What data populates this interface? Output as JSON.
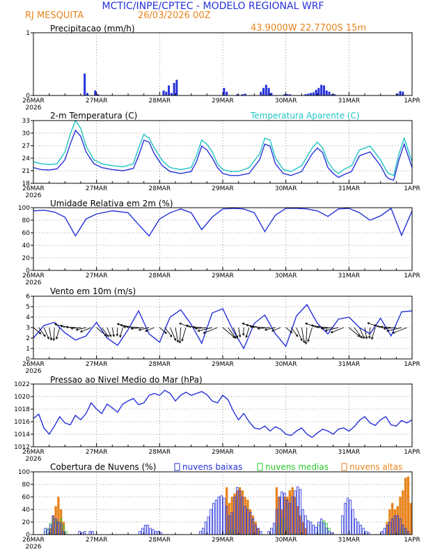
{
  "header": {
    "title": "MCTIC/INPE/CPTEC - MODELO REGIONAL WRF",
    "location": "RJ MESQUITA",
    "run": "26/03/2026 00Z",
    "coords": "43.9000W 22.7700S 15m"
  },
  "colors": {
    "title": "#2430d8",
    "orange": "#e8841c",
    "blue": "#2430d8",
    "cyan": "#1ec4c4",
    "green": "#28c828",
    "black": "#000000"
  },
  "time_axis": {
    "day_labels": [
      "26MAR",
      "27MAR",
      "28MAR",
      "29MAR",
      "30MAR",
      "31MAR",
      "1APR"
    ],
    "year_label": "2026",
    "hours_total": 144
  },
  "chart_data": [
    {
      "id": "precip",
      "type": "bar",
      "title": "Precipitacao (mm/h)",
      "ylim": [
        0,
        1
      ],
      "yticks": [
        "0",
        "1"
      ],
      "x": [
        19,
        20,
        23,
        24,
        49,
        50,
        51,
        52,
        53,
        54,
        72,
        73,
        77,
        79,
        80,
        86,
        87,
        88,
        89,
        90,
        95,
        96,
        97,
        103,
        104,
        105,
        106,
        107,
        108,
        109,
        110,
        111,
        112,
        113,
        114,
        138,
        139,
        140
      ],
      "values": [
        0.35,
        0.04,
        0.08,
        0.02,
        0.08,
        0.06,
        0.16,
        0.04,
        0.2,
        0.25,
        0.12,
        0.06,
        0.02,
        0.02,
        0.03,
        0.06,
        0.12,
        0.17,
        0.12,
        0.04,
        0.02,
        0.02,
        0.02,
        0.02,
        0.03,
        0.04,
        0.05,
        0.09,
        0.12,
        0.17,
        0.16,
        0.08,
        0.06,
        0.02,
        0.02,
        0.03,
        0.07,
        0.06
      ]
    },
    {
      "id": "temperature",
      "type": "line",
      "title": "2-m Temperatura (C)",
      "legend": "Temperatura Aparente (C)",
      "ylim": [
        17,
        33
      ],
      "yticks": [
        "18",
        "21",
        "24",
        "27",
        "30",
        "33"
      ],
      "x": [
        0,
        3,
        6,
        9,
        12,
        14,
        16,
        18,
        20,
        23,
        26,
        30,
        34,
        38,
        40,
        42,
        44,
        46,
        49,
        52,
        56,
        60,
        62,
        64,
        66,
        68,
        70,
        72,
        75,
        78,
        82,
        86,
        88,
        90,
        92,
        95,
        98,
        102,
        106,
        108,
        110,
        112,
        114,
        116,
        118,
        121,
        124,
        128,
        132,
        134,
        135,
        137,
        139,
        141,
        144
      ],
      "series": [
        {
          "name": "Temperatura",
          "values": [
            21.0,
            20.5,
            20.4,
            20.7,
            23.0,
            27.0,
            30.5,
            29.0,
            25.0,
            22.0,
            21.0,
            20.5,
            20.2,
            20.8,
            24.0,
            28.0,
            27.5,
            24.5,
            21.5,
            20.0,
            19.5,
            20.0,
            22.5,
            26.5,
            25.5,
            23.5,
            21.0,
            19.5,
            19.0,
            19.0,
            19.5,
            23.0,
            27.0,
            26.5,
            22.0,
            19.5,
            19.0,
            20.0,
            24.5,
            26.0,
            24.8,
            21.0,
            19.5,
            18.5,
            19.2,
            20.0,
            24.0,
            25.0,
            21.5,
            19.0,
            18.2,
            17.8,
            23.0,
            27.0,
            21.0
          ]
        },
        {
          "name": "Temperatura Aparente",
          "values": [
            22.5,
            22.0,
            21.8,
            22.0,
            25.0,
            29.5,
            33.0,
            31.0,
            26.5,
            23.0,
            22.0,
            21.5,
            21.2,
            22.0,
            26.0,
            29.5,
            28.5,
            26.0,
            22.8,
            21.0,
            20.5,
            21.0,
            24.0,
            28.0,
            27.0,
            25.0,
            22.0,
            20.5,
            20.0,
            20.0,
            21.0,
            24.5,
            28.5,
            28.0,
            23.5,
            20.5,
            20.0,
            21.5,
            26.0,
            27.5,
            26.0,
            22.5,
            20.5,
            19.5,
            20.5,
            21.5,
            25.5,
            26.5,
            23.0,
            20.5,
            19.5,
            19.0,
            24.5,
            28.5,
            22.5
          ]
        }
      ]
    },
    {
      "id": "humidity",
      "type": "line",
      "title": "Umidade Relativa em 2m (%)",
      "ylim": [
        0,
        100
      ],
      "yticks": [
        "0",
        "20",
        "40",
        "60",
        "80",
        "100"
      ],
      "x": [
        0,
        4,
        8,
        12,
        16,
        20,
        24,
        30,
        36,
        40,
        44,
        48,
        52,
        56,
        60,
        64,
        68,
        72,
        76,
        80,
        84,
        88,
        92,
        96,
        100,
        104,
        108,
        112,
        116,
        120,
        124,
        128,
        132,
        136,
        140,
        144
      ],
      "series": [
        {
          "name": "Umidade Relativa",
          "values": [
            95,
            96,
            93,
            85,
            55,
            82,
            90,
            95,
            92,
            73,
            55,
            82,
            92,
            98,
            92,
            65,
            85,
            98,
            99,
            98,
            92,
            62,
            88,
            99,
            99,
            98,
            95,
            86,
            98,
            99,
            92,
            80,
            87,
            99,
            56,
            95
          ]
        }
      ]
    },
    {
      "id": "wind",
      "type": "line",
      "title": "Vento em 10m (m/s)",
      "ylim": [
        0,
        6
      ],
      "yticks": [
        "0",
        "1",
        "2",
        "3",
        "4",
        "5",
        "6"
      ],
      "x": [
        0,
        4,
        8,
        12,
        16,
        20,
        24,
        28,
        32,
        36,
        40,
        44,
        48,
        52,
        56,
        60,
        64,
        68,
        72,
        76,
        80,
        84,
        88,
        92,
        96,
        100,
        104,
        108,
        112,
        116,
        120,
        124,
        128,
        132,
        136,
        140,
        144
      ],
      "series": [
        {
          "name": "Velocidade",
          "values": [
            2.0,
            3.2,
            3.5,
            2.5,
            1.8,
            2.2,
            3.5,
            2.0,
            1.3,
            2.8,
            4.6,
            2.4,
            1.6,
            4.0,
            4.7,
            3.3,
            1.5,
            4.4,
            4.8,
            2.7,
            1.0,
            3.4,
            4.2,
            2.4,
            1.2,
            4.1,
            5.2,
            3.4,
            2.4,
            3.8,
            4.0,
            3.0,
            2.4,
            3.9,
            2.2,
            4.5,
            4.6
          ]
        }
      ]
    },
    {
      "id": "pressure",
      "type": "line",
      "title": "Pressao ao Nivel Medio do Mar (hPa)",
      "ylim": [
        1012,
        1022
      ],
      "yticks": [
        "1012",
        "1014",
        "1016",
        "1018",
        "1020",
        "1022"
      ],
      "x": [
        0,
        2,
        4,
        6,
        8,
        10,
        12,
        14,
        16,
        18,
        20,
        22,
        24,
        26,
        28,
        30,
        32,
        34,
        36,
        38,
        40,
        42,
        44,
        46,
        48,
        50,
        52,
        54,
        56,
        58,
        60,
        62,
        64,
        66,
        68,
        70,
        72,
        74,
        76,
        78,
        80,
        82,
        84,
        86,
        88,
        90,
        92,
        94,
        96,
        98,
        100,
        102,
        104,
        106,
        108,
        110,
        112,
        114,
        116,
        118,
        120,
        122,
        124,
        126,
        128,
        130,
        132,
        134,
        136,
        138,
        140,
        142,
        144
      ],
      "series": [
        {
          "name": "Pressao",
          "values": [
            1016.5,
            1017.2,
            1015.0,
            1014.0,
            1015.3,
            1016.8,
            1015.8,
            1015.5,
            1017.0,
            1016.3,
            1017.3,
            1019.0,
            1018.0,
            1017.3,
            1018.8,
            1018.2,
            1017.5,
            1018.8,
            1019.3,
            1019.7,
            1018.7,
            1019.0,
            1020.2,
            1020.5,
            1020.2,
            1021.0,
            1020.5,
            1019.3,
            1020.2,
            1020.7,
            1020.2,
            1020.5,
            1020.8,
            1020.3,
            1019.3,
            1019.0,
            1020.2,
            1019.5,
            1017.7,
            1016.3,
            1017.3,
            1016.0,
            1015.0,
            1014.8,
            1015.3,
            1014.5,
            1015.2,
            1014.8,
            1014.0,
            1013.8,
            1014.5,
            1015.0,
            1014.0,
            1013.5,
            1014.2,
            1014.8,
            1014.5,
            1014.0,
            1014.8,
            1015.0,
            1014.5,
            1015.2,
            1016.2,
            1016.8,
            1015.8,
            1015.4,
            1016.3,
            1016.8,
            1015.5,
            1015.3,
            1016.2,
            1015.8,
            1016.3
          ]
        }
      ]
    },
    {
      "id": "clouds",
      "type": "bar",
      "title": "Cobertura de Nuvens (%)",
      "ylim": [
        0,
        100
      ],
      "yticks": [
        "0",
        "20",
        "40",
        "60",
        "80",
        "100"
      ],
      "x": [
        4,
        5,
        6,
        7,
        8,
        9,
        10,
        11,
        12,
        13,
        14,
        15,
        16,
        17,
        18,
        19,
        20,
        21,
        22,
        23,
        24,
        25,
        26,
        27,
        28,
        29,
        30,
        31,
        32,
        33,
        34,
        35,
        36,
        37,
        38,
        39,
        40,
        41,
        42,
        43,
        44,
        45,
        46,
        47,
        48,
        49,
        50,
        51,
        52,
        53,
        54,
        55,
        56,
        57,
        58,
        59,
        60,
        61,
        62,
        63,
        64,
        65,
        66,
        67,
        68,
        69,
        70,
        71,
        72,
        73,
        74,
        75,
        76,
        77,
        78,
        79,
        80,
        81,
        82,
        83,
        84,
        85,
        86,
        87,
        88,
        89,
        90,
        91,
        92,
        93,
        94,
        95,
        96,
        97,
        98,
        99,
        100,
        101,
        102,
        103,
        104,
        105,
        106,
        107,
        108,
        109,
        110,
        111,
        112,
        113,
        114,
        115,
        116,
        117,
        118,
        119,
        120,
        121,
        122,
        123,
        124,
        125,
        126,
        127,
        128,
        129,
        130,
        131,
        132,
        133,
        134,
        135,
        136,
        137,
        138,
        139,
        140,
        141,
        142,
        143
      ],
      "series": [
        {
          "name": "nuvens baixas",
          "values": [
            10,
            8,
            15,
            30,
            25,
            20,
            18,
            5,
            0,
            0,
            0,
            0,
            0,
            5,
            3,
            5,
            0,
            5,
            5,
            0,
            0,
            0,
            0,
            0,
            0,
            0,
            0,
            0,
            0,
            0,
            0,
            0,
            0,
            0,
            0,
            0,
            5,
            10,
            15,
            15,
            10,
            8,
            5,
            5,
            3,
            0,
            0,
            0,
            0,
            0,
            0,
            0,
            0,
            0,
            0,
            0,
            0,
            0,
            0,
            5,
            10,
            20,
            28,
            40,
            50,
            55,
            60,
            62,
            58,
            45,
            30,
            35,
            60,
            75,
            70,
            60,
            45,
            40,
            35,
            25,
            15,
            10,
            5,
            0,
            0,
            5,
            10,
            18,
            40,
            60,
            68,
            66,
            55,
            50,
            60,
            70,
            76,
            72,
            40,
            30,
            22,
            20,
            15,
            12,
            20,
            25,
            18,
            10,
            5,
            3,
            0,
            0,
            0,
            30,
            50,
            58,
            55,
            40,
            25,
            20,
            15,
            10,
            5,
            3,
            0,
            0,
            0,
            0,
            5,
            10,
            15,
            20,
            25,
            30,
            30,
            25,
            15,
            10,
            5,
            0
          ]
        },
        {
          "name": "nuvens medias",
          "values": [
            5,
            10,
            18,
            25,
            22,
            20,
            25,
            15,
            5,
            0,
            0,
            0,
            0,
            0,
            0,
            0,
            0,
            0,
            0,
            0,
            0,
            0,
            0,
            0,
            0,
            0,
            0,
            0,
            0,
            0,
            0,
            0,
            0,
            0,
            0,
            0,
            0,
            0,
            0,
            0,
            0,
            0,
            0,
            0,
            0,
            0,
            0,
            0,
            0,
            0,
            0,
            0,
            0,
            0,
            0,
            0,
            0,
            0,
            0,
            0,
            0,
            0,
            0,
            0,
            0,
            0,
            0,
            0,
            0,
            0,
            5,
            8,
            5,
            0,
            0,
            0,
            0,
            0,
            0,
            0,
            0,
            0,
            0,
            0,
            0,
            0,
            0,
            0,
            10,
            15,
            25,
            20,
            10,
            0,
            0,
            0,
            0,
            0,
            0,
            0,
            0,
            0,
            0,
            0,
            15,
            20,
            22,
            18,
            10,
            0,
            0,
            0,
            0,
            0,
            0,
            0,
            0,
            0,
            0,
            0,
            0,
            0,
            0,
            0,
            0,
            0,
            0,
            0,
            0,
            0,
            0,
            0,
            0,
            0,
            0,
            5,
            10,
            5,
            0,
            0
          ]
        },
        {
          "name": "nuvens altas",
          "values": [
            0,
            0,
            10,
            30,
            45,
            60,
            40,
            20,
            0,
            0,
            0,
            0,
            0,
            0,
            0,
            0,
            0,
            0,
            0,
            0,
            0,
            0,
            0,
            0,
            0,
            0,
            0,
            0,
            0,
            0,
            0,
            0,
            0,
            0,
            0,
            0,
            0,
            0,
            0,
            0,
            0,
            0,
            0,
            0,
            0,
            0,
            0,
            0,
            0,
            0,
            0,
            0,
            0,
            0,
            0,
            0,
            0,
            0,
            0,
            0,
            0,
            0,
            0,
            0,
            0,
            0,
            0,
            0,
            0,
            75,
            50,
            60,
            65,
            70,
            75,
            70,
            60,
            55,
            40,
            30,
            20,
            10,
            0,
            0,
            0,
            0,
            0,
            0,
            75,
            60,
            40,
            60,
            60,
            70,
            75,
            60,
            45,
            30,
            20,
            10,
            0,
            0,
            0,
            0,
            0,
            0,
            0,
            0,
            0,
            0,
            0,
            0,
            0,
            0,
            0,
            0,
            0,
            0,
            0,
            0,
            0,
            0,
            0,
            0,
            0,
            0,
            0,
            0,
            0,
            0,
            20,
            40,
            50,
            40,
            45,
            60,
            70,
            90,
            92,
            50
          ]
        }
      ]
    }
  ]
}
